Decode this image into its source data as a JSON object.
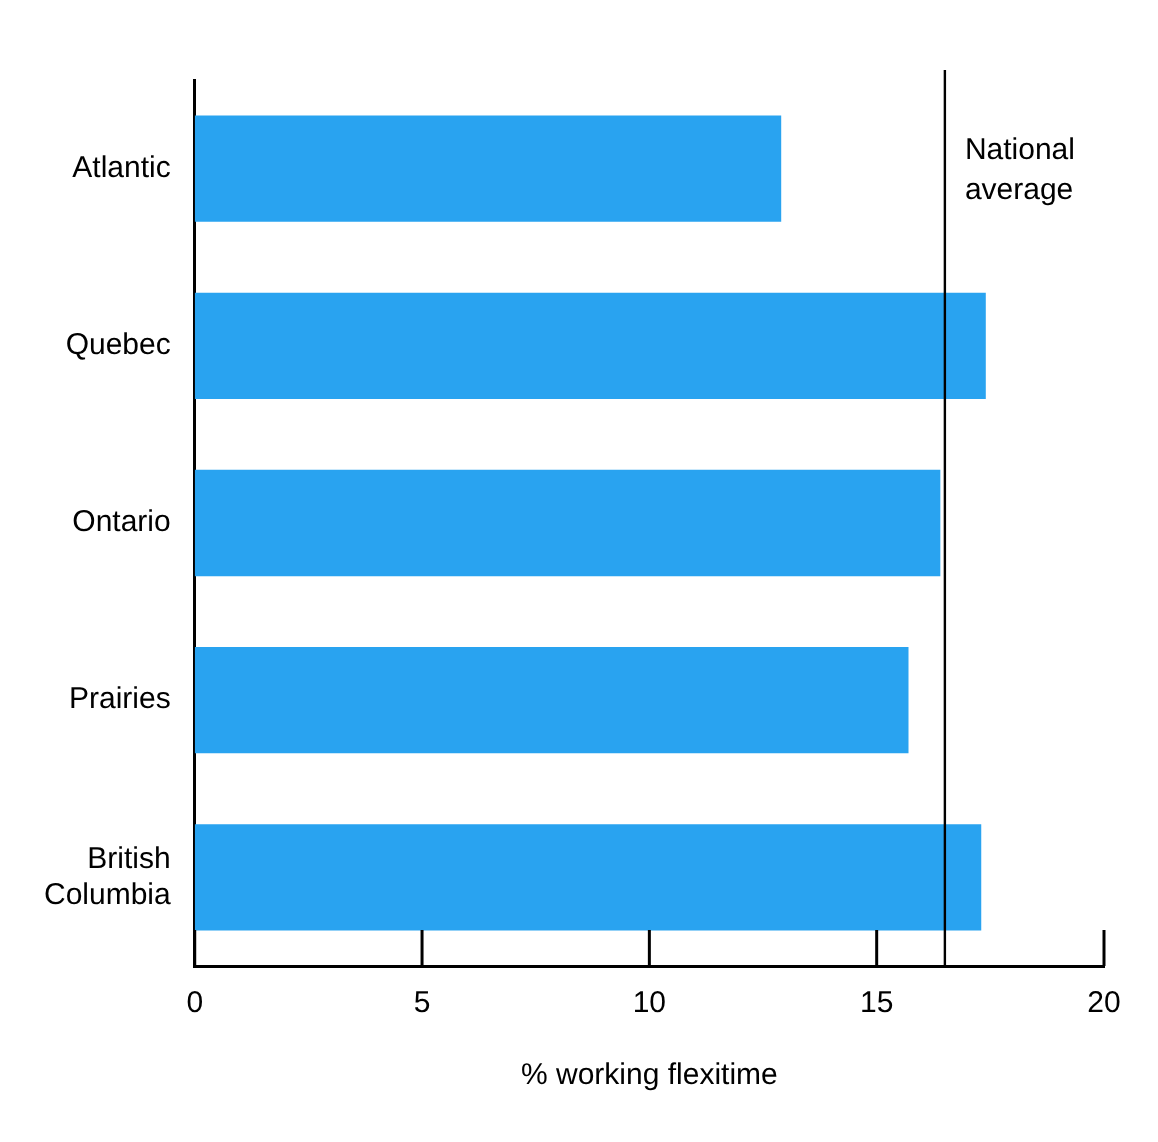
{
  "chart_data": {
    "type": "bar",
    "orientation": "horizontal",
    "categories": [
      "Atlantic",
      "Quebec",
      "Ontario",
      "Prairies",
      "British Columbia"
    ],
    "values": [
      12.9,
      17.4,
      16.4,
      15.7,
      17.3
    ],
    "color": "#29a3f0",
    "xlim": [
      0,
      20
    ],
    "xticks": [
      0,
      5,
      10,
      15,
      20
    ],
    "xlabel": "% working flexitime",
    "ref_lines": [
      {
        "axis": "x",
        "value": 16.5,
        "label": "National average"
      }
    ],
    "grid": false,
    "legend": false
  }
}
